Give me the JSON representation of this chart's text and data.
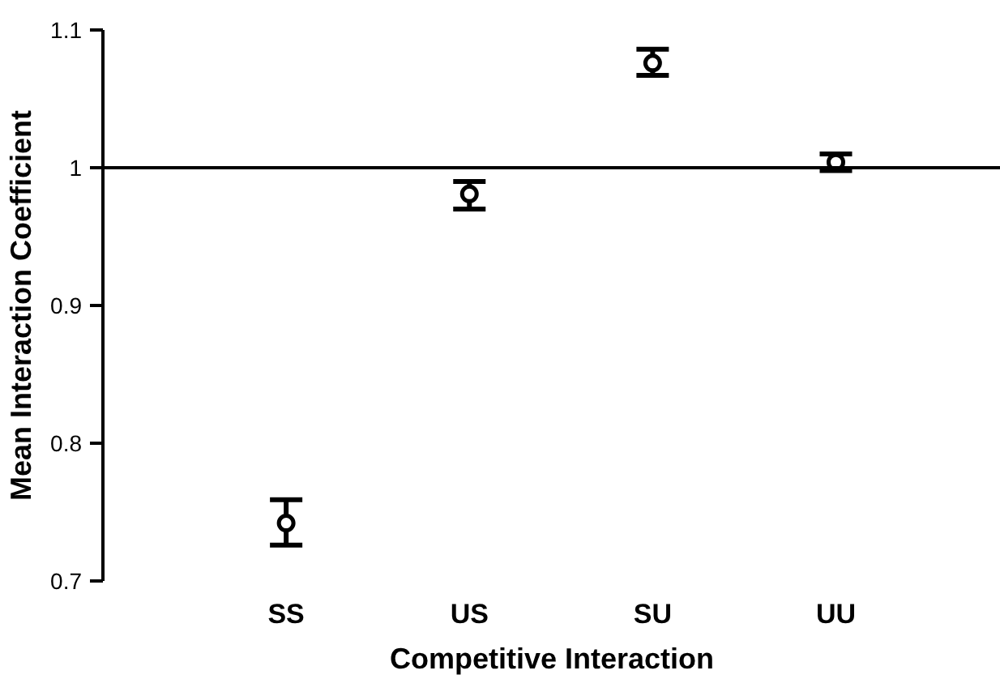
{
  "chart_data": {
    "type": "scatter",
    "xlabel": "Competitive Interaction",
    "ylabel": "Mean Interaction Coefficient",
    "categories": [
      "SS",
      "US",
      "SU",
      "UU"
    ],
    "values": [
      0.742,
      0.981,
      1.076,
      1.004
    ],
    "errors": [
      [
        0.726,
        0.759
      ],
      [
        0.97,
        0.99
      ],
      [
        1.067,
        1.086
      ],
      [
        0.998,
        1.01
      ]
    ],
    "color": "#000000",
    "marker": "circle",
    "ylim": [
      0.7,
      1.1
    ],
    "yticks": [
      0.7,
      0.8,
      0.9,
      {
        "value": 1,
        "label": "1"
      },
      1.1
    ],
    "ref_lines": [
      {
        "axis": "y",
        "value": 1,
        "color": "#000000"
      }
    ],
    "grid": false
  }
}
